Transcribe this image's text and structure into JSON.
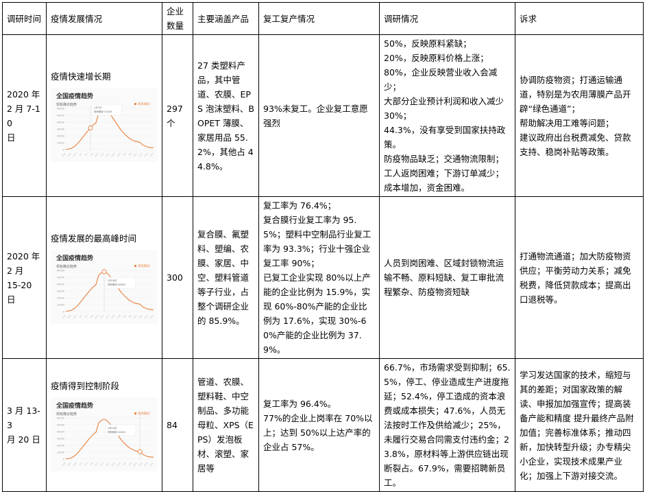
{
  "headers": [
    "调研时间",
    "疫情发展情况",
    "企业数量",
    "主要涵盖产品",
    "复工复产情况",
    "调研情况",
    "诉求"
  ],
  "rows": [
    {
      "date": "2020 年\n2 月 7-10\n日",
      "stage": "疫情快速增长期",
      "count": "297\n个",
      "products": "27 类塑料产品，其中管道、农膜、EPS 泡沫塑料、BOPET 薄膜、家居用品 55.2%，其他占 44.8%。",
      "resumption": [
        "93%未复工。企业复工意愿强烈"
      ],
      "survey": [
        "50%，反映原料紧缺；",
        "20%，反映原料价格上涨；",
        "80%，企业反映营业收入会减少；",
        "大部分企业预计利润和收入减少 30%；",
        "44.3%，没有享受到国家扶持政策。",
        "防疫物品缺乏；交通物流限制；工人返岗困难；下游订单减少；成本增加，资金困难。"
      ],
      "demands": [
        "协调防疫物资；打通运输通道，特别是为农用薄膜产品开辟“绿色通道”；",
        "帮助解决用工难等问题；",
        "建议政府出台税费减免、贷款支持、稳岗补贴等政策。"
      ],
      "chart": {
        "tooltip_date": "2月7日",
        "tooltip_value": "现有确诊:31619",
        "marker_date": "2/7"
      }
    },
    {
      "date": "2020 年\n2 月\n15-20 日",
      "stage": "疫情发展的最高峰时间",
      "count": "300",
      "products": "复合膜、氟塑料、塑编、农膜、家居、中空、塑料管道等子行业，占整个调研企业的 85.9%。",
      "resumption": [
        "复工率为 76.4%；",
        "复合膜行业复工率为 95.5%；塑料中空制品行业复工率为 93.3%；行业十强企业复工率 90%；",
        "已复工企业实现 80%以上产能的企业比例为 15.9%，实现 60%-80%产能的企业比例为 17.6%，实现 30%-60%产能的企业比例为 37.9%。"
      ],
      "survey": [
        "人员到岗困难、区域封锁物流运输不畅、原料短缺、复工审批流程繁杂、防疫物资短缺"
      ],
      "demands": [
        "打通物流通道；加大防疫物资供应；平衡劳动力关系；减免税费，降低贷款成本；提高出口退税等。"
      ],
      "chart": {
        "tooltip_date": "2月16日",
        "tooltip_value": "现有确诊:58005",
        "marker_date": "2/17"
      }
    },
    {
      "date": "3 月 13-3\n月 20 日",
      "stage": "疫情得到控制阶段",
      "count": "84",
      "products": "管道、农膜、塑料鞋、中空制品、多功能母粒、XPS（EPS）发泡板材、滚塑、家居等",
      "resumption": [
        "复工率为 96.4%。",
        "77%的企业上岗率在 70%以上；达到 50%以上达产率的企业占 57%。"
      ],
      "survey": [
        "66.7%，市场需求受到抑制；65.5%，停工、停业造成生产进度拖延；52.4%，停工造成的资本浪费或成本损失；47.6%，人员无法按时工作及供给减少；25%，未履行交易合同需支付违约金；23.8%，原材料等上游供应链出现断裂占。67.9%，需要招聘新员工。"
      ],
      "demands": [
        "学习发达国家的技术，缩短与其的差距；对国家政策的解读、申报加加强宣传；提高装备产能和精度 提升最终产品附加值；完善标准体系；推动四新，加快转型升级；办专精尖小企业，实现技术成果产业化；加强上下游对接交流。"
      ],
      "chart": {
        "tooltip_date": "3月14日",
        "tooltip_value": "现有确诊:10822",
        "marker_date": "3/14"
      }
    }
  ],
  "trend_chart": {
    "title": "全国疫情趋势",
    "subtitle": "现有确诊趋势",
    "legend": "现有确诊",
    "line_color": "#e8894a",
    "y_ticks": [
      "60000",
      "50000",
      "40000",
      "30000",
      "20000",
      "10000",
      "0"
    ],
    "ylim": [
      0,
      60000
    ],
    "dates": [
      "1/20",
      "1/22",
      "1/24",
      "1/26",
      "1/28",
      "1/30",
      "2/1",
      "2/3",
      "2/5",
      "2/7",
      "2/9",
      "2/11",
      "2/13",
      "2/15",
      "2/17",
      "2/19",
      "2/21",
      "2/23",
      "2/25",
      "2/27",
      "2/29",
      "3/2",
      "3/4",
      "3/6",
      "3/8",
      "3/10",
      "3/12",
      "3/14",
      "3/16",
      "3/18",
      "3/20",
      "3/22",
      "3/24"
    ],
    "values": [
      300,
      800,
      1800,
      4000,
      7500,
      12000,
      17000,
      22000,
      27000,
      31600,
      36000,
      39000,
      53000,
      56500,
      58000,
      56000,
      52000,
      47000,
      41000,
      35000,
      29000,
      24500,
      20500,
      17000,
      14500,
      12500,
      11500,
      10800,
      7000,
      5000,
      3500,
      3000,
      2500
    ]
  }
}
